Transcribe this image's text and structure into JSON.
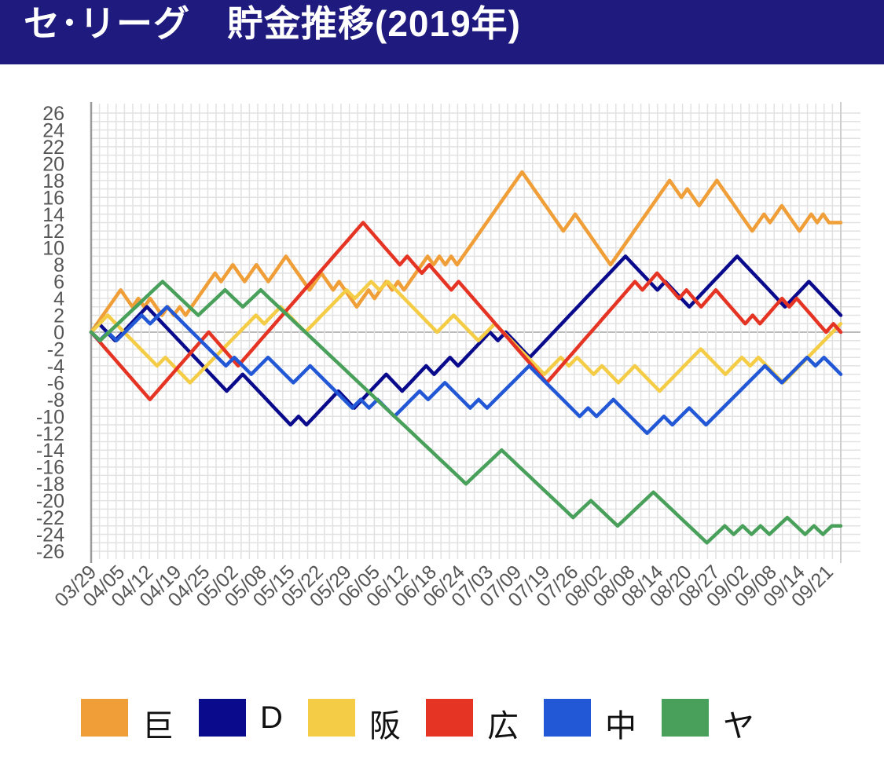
{
  "header": {
    "title": "セ･リーグ　貯金推移(2019年)",
    "background": "#1f1b7e"
  },
  "chart_data": {
    "type": "line",
    "title": "セ･リーグ　貯金推移(2019年)",
    "xlabel": "",
    "ylabel": "",
    "ylim": [
      -26,
      26
    ],
    "y_ticks": [
      26,
      24,
      22,
      20,
      18,
      16,
      14,
      12,
      10,
      8,
      6,
      4,
      2,
      0,
      -2,
      -4,
      -6,
      -8,
      -10,
      -12,
      -14,
      -16,
      -18,
      -20,
      -22,
      -24,
      -26
    ],
    "x_tick_labels": [
      "03/29",
      "04/05",
      "04/12",
      "04/19",
      "04/25",
      "05/02",
      "05/08",
      "05/15",
      "05/22",
      "05/29",
      "06/05",
      "06/12",
      "06/18",
      "06/24",
      "07/03",
      "07/09",
      "07/19",
      "07/26",
      "08/02",
      "08/08",
      "08/14",
      "08/20",
      "08/27",
      "09/02",
      "09/08",
      "09/14",
      "09/21"
    ],
    "grid": true,
    "legend_position": "bottom",
    "series": [
      {
        "name": "巨",
        "color": "#f09e38",
        "values": [
          0,
          1,
          2,
          3,
          4,
          5,
          4,
          3,
          4,
          3,
          4,
          3,
          2,
          3,
          2,
          3,
          2,
          3,
          4,
          5,
          6,
          7,
          6,
          7,
          8,
          7,
          6,
          7,
          8,
          7,
          6,
          7,
          8,
          9,
          8,
          7,
          6,
          5,
          6,
          7,
          6,
          5,
          6,
          5,
          4,
          3,
          4,
          5,
          4,
          5,
          6,
          5,
          6,
          5,
          6,
          7,
          8,
          9,
          8,
          9,
          8,
          9,
          8,
          9,
          10,
          11,
          12,
          13,
          14,
          15,
          16,
          17,
          18,
          19,
          18,
          17,
          16,
          15,
          14,
          13,
          12,
          13,
          14,
          13,
          12,
          11,
          10,
          9,
          8,
          9,
          10,
          11,
          12,
          13,
          14,
          15,
          16,
          17,
          18,
          17,
          16,
          17,
          16,
          15,
          16,
          17,
          18,
          17,
          16,
          15,
          14,
          13,
          12,
          13,
          14,
          13,
          14,
          15,
          14,
          13,
          12,
          13,
          14,
          13,
          14,
          13,
          13,
          13
        ]
      },
      {
        "name": "D",
        "color": "#0a0a8c",
        "values": [
          0,
          1,
          0,
          -1,
          0,
          1,
          2,
          3,
          2,
          1,
          0,
          -1,
          -2,
          -3,
          -4,
          -5,
          -6,
          -7,
          -6,
          -5,
          -6,
          -7,
          -8,
          -9,
          -10,
          -11,
          -10,
          -11,
          -10,
          -9,
          -8,
          -7,
          -8,
          -9,
          -8,
          -7,
          -6,
          -5,
          -6,
          -7,
          -6,
          -5,
          -4,
          -5,
          -4,
          -3,
          -4,
          -3,
          -2,
          -1,
          0,
          -1,
          0,
          -1,
          -2,
          -3,
          -2,
          -1,
          0,
          1,
          2,
          3,
          4,
          5,
          6,
          7,
          8,
          9,
          8,
          7,
          6,
          5,
          6,
          5,
          4,
          3,
          4,
          5,
          6,
          7,
          8,
          9,
          8,
          7,
          6,
          5,
          4,
          3,
          4,
          5,
          6,
          5,
          4,
          3,
          2
        ],
        "x_index_offset": [
          0,
          1,
          2,
          3,
          4,
          5,
          6,
          7,
          8,
          9,
          10,
          11,
          12,
          13,
          14,
          15,
          16,
          17,
          18,
          19,
          20,
          21,
          22,
          23,
          24,
          25,
          26,
          27,
          28,
          29,
          30,
          31,
          32,
          33,
          34,
          35,
          36,
          37,
          38,
          39,
          40,
          41,
          42,
          43,
          44,
          45,
          46,
          47,
          48,
          49,
          50,
          51,
          52,
          53,
          54,
          55,
          56,
          57,
          58,
          59,
          60,
          61,
          62,
          63,
          64,
          65,
          66,
          67,
          68,
          69,
          70,
          71,
          72,
          73,
          74,
          75,
          76,
          77,
          78,
          79,
          80,
          81,
          82,
          83,
          84,
          85,
          86,
          87,
          88,
          89,
          90,
          91,
          92,
          93,
          94
        ]
      },
      {
        "name": "阪",
        "color": "#f5cc45",
        "values": [
          0,
          1,
          2,
          1,
          0,
          -1,
          -2,
          -3,
          -4,
          -3,
          -4,
          -5,
          -6,
          -5,
          -4,
          -3,
          -2,
          -1,
          0,
          1,
          2,
          1,
          2,
          3,
          2,
          1,
          0,
          1,
          2,
          3,
          4,
          5,
          4,
          5,
          6,
          5,
          6,
          5,
          4,
          3,
          2,
          1,
          0,
          1,
          2,
          1,
          0,
          -1,
          0,
          1,
          0,
          -1,
          -2,
          -3,
          -4,
          -5,
          -4,
          -3,
          -4,
          -3,
          -4,
          -5,
          -4,
          -5,
          -6,
          -5,
          -4,
          -5,
          -6,
          -7,
          -6,
          -5,
          -4,
          -3,
          -2,
          -3,
          -4,
          -5,
          -4,
          -3,
          -4,
          -3,
          -4,
          -5,
          -6,
          -5,
          -4,
          -3,
          -2,
          -1,
          0,
          1
        ]
      },
      {
        "name": "広",
        "color": "#e53423",
        "values": [
          0,
          -1,
          -2,
          -3,
          -4,
          -5,
          -6,
          -7,
          -8,
          -7,
          -6,
          -5,
          -4,
          -3,
          -2,
          -1,
          0,
          -1,
          -2,
          -3,
          -4,
          -3,
          -2,
          -1,
          0,
          1,
          2,
          3,
          4,
          5,
          6,
          7,
          8,
          9,
          10,
          11,
          12,
          13,
          12,
          11,
          10,
          9,
          8,
          9,
          8,
          7,
          8,
          7,
          6,
          5,
          6,
          5,
          4,
          3,
          2,
          1,
          0,
          -1,
          -2,
          -3,
          -4,
          -5,
          -6,
          -5,
          -4,
          -3,
          -2,
          -1,
          0,
          1,
          2,
          3,
          4,
          5,
          6,
          5,
          6,
          7,
          6,
          5,
          4,
          5,
          4,
          3,
          4,
          5,
          4,
          3,
          2,
          1,
          2,
          1,
          2,
          3,
          4,
          3,
          4,
          3,
          2,
          1,
          0,
          1,
          0
        ]
      },
      {
        "name": "中",
        "color": "#2257d6",
        "values": [
          0,
          -1,
          0,
          -1,
          0,
          1,
          2,
          1,
          2,
          3,
          2,
          1,
          0,
          -1,
          -2,
          -3,
          -4,
          -3,
          -4,
          -5,
          -4,
          -3,
          -4,
          -5,
          -6,
          -5,
          -4,
          -5,
          -6,
          -7,
          -8,
          -9,
          -8,
          -9,
          -8,
          -9,
          -10,
          -9,
          -8,
          -7,
          -8,
          -7,
          -6,
          -7,
          -8,
          -9,
          -8,
          -9,
          -8,
          -7,
          -6,
          -5,
          -4,
          -5,
          -6,
          -7,
          -8,
          -9,
          -10,
          -9,
          -10,
          -9,
          -8,
          -9,
          -10,
          -11,
          -12,
          -11,
          -10,
          -11,
          -10,
          -9,
          -10,
          -11,
          -10,
          -9,
          -8,
          -7,
          -6,
          -5,
          -4,
          -5,
          -6,
          -5,
          -4,
          -3,
          -4,
          -3,
          -4,
          -5
        ]
      },
      {
        "name": "ヤ",
        "color": "#48a05a",
        "values": [
          0,
          -1,
          0,
          1,
          2,
          3,
          4,
          5,
          6,
          5,
          4,
          3,
          2,
          3,
          4,
          5,
          4,
          3,
          4,
          5,
          4,
          3,
          2,
          1,
          0,
          -1,
          -2,
          -3,
          -4,
          -5,
          -6,
          -7,
          -8,
          -9,
          -10,
          -11,
          -12,
          -13,
          -14,
          -15,
          -16,
          -17,
          -18,
          -17,
          -16,
          -15,
          -14,
          -15,
          -16,
          -17,
          -18,
          -19,
          -20,
          -21,
          -22,
          -21,
          -20,
          -21,
          -22,
          -23,
          -22,
          -21,
          -20,
          -19,
          -20,
          -21,
          -22,
          -23,
          -24,
          -25,
          -24,
          -23,
          -24,
          -23,
          -24,
          -23,
          -24,
          -23,
          -22,
          -23,
          -24,
          -23,
          -24,
          -23,
          -23
        ]
      }
    ]
  },
  "legend": {
    "items": [
      {
        "label": "巨",
        "color": "#f09e38"
      },
      {
        "label": "D",
        "color": "#0a0a8c"
      },
      {
        "label": "阪",
        "color": "#f5cc45"
      },
      {
        "label": "広",
        "color": "#e53423"
      },
      {
        "label": "中",
        "color": "#2257d6"
      },
      {
        "label": "ヤ",
        "color": "#48a05a"
      }
    ]
  }
}
